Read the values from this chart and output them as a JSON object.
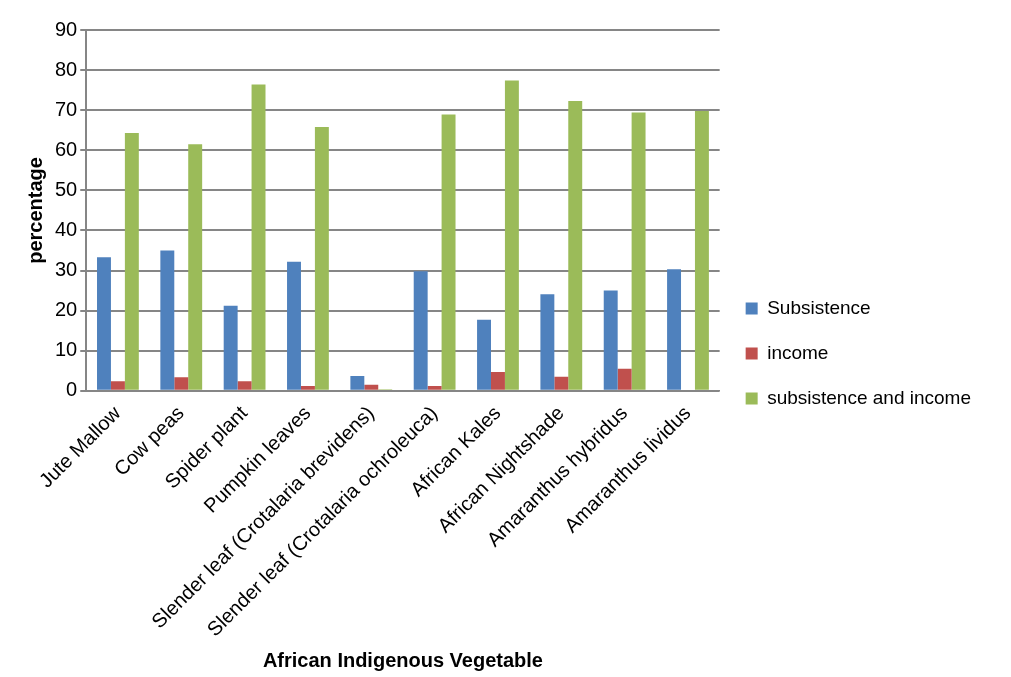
{
  "chart_data": {
    "type": "bar",
    "xlabel": "African Indigenous Vegetable",
    "ylabel": "percentage",
    "categories": [
      "Jute Mallow",
      "Cow peas",
      "Spider plant",
      "Pumpkin leaves",
      "Slender leaf (Crotalaria brevidens)",
      "Slender leaf (Crotalaria ochroleuca)",
      "African Kales",
      "African Nightshade",
      "Amaranthus hybridus",
      "Amaranthus lividus"
    ],
    "series": [
      {
        "name": "Subsistence",
        "color": "#4f81bd",
        "values": [
          33.3,
          35,
          21.2,
          32.2,
          3.7,
          29.8,
          17.7,
          24.1,
          25,
          30.3
        ]
      },
      {
        "name": "income",
        "color": "#c0504d",
        "values": [
          2.4,
          3.4,
          2.4,
          1.2,
          1.5,
          1.2,
          4.7,
          3.5,
          5.5,
          0
        ]
      },
      {
        "name": "subsistence and income",
        "color": "#9bbb59",
        "values": [
          64.3,
          61.5,
          76.4,
          65.8,
          0.4,
          68.9,
          77.4,
          72.3,
          69.4,
          69.8
        ]
      }
    ],
    "ylim": [
      0,
      90
    ],
    "yticks": [
      0,
      10,
      20,
      30,
      40,
      50,
      60,
      70,
      80,
      90
    ],
    "grid": "y",
    "legend": "right"
  }
}
